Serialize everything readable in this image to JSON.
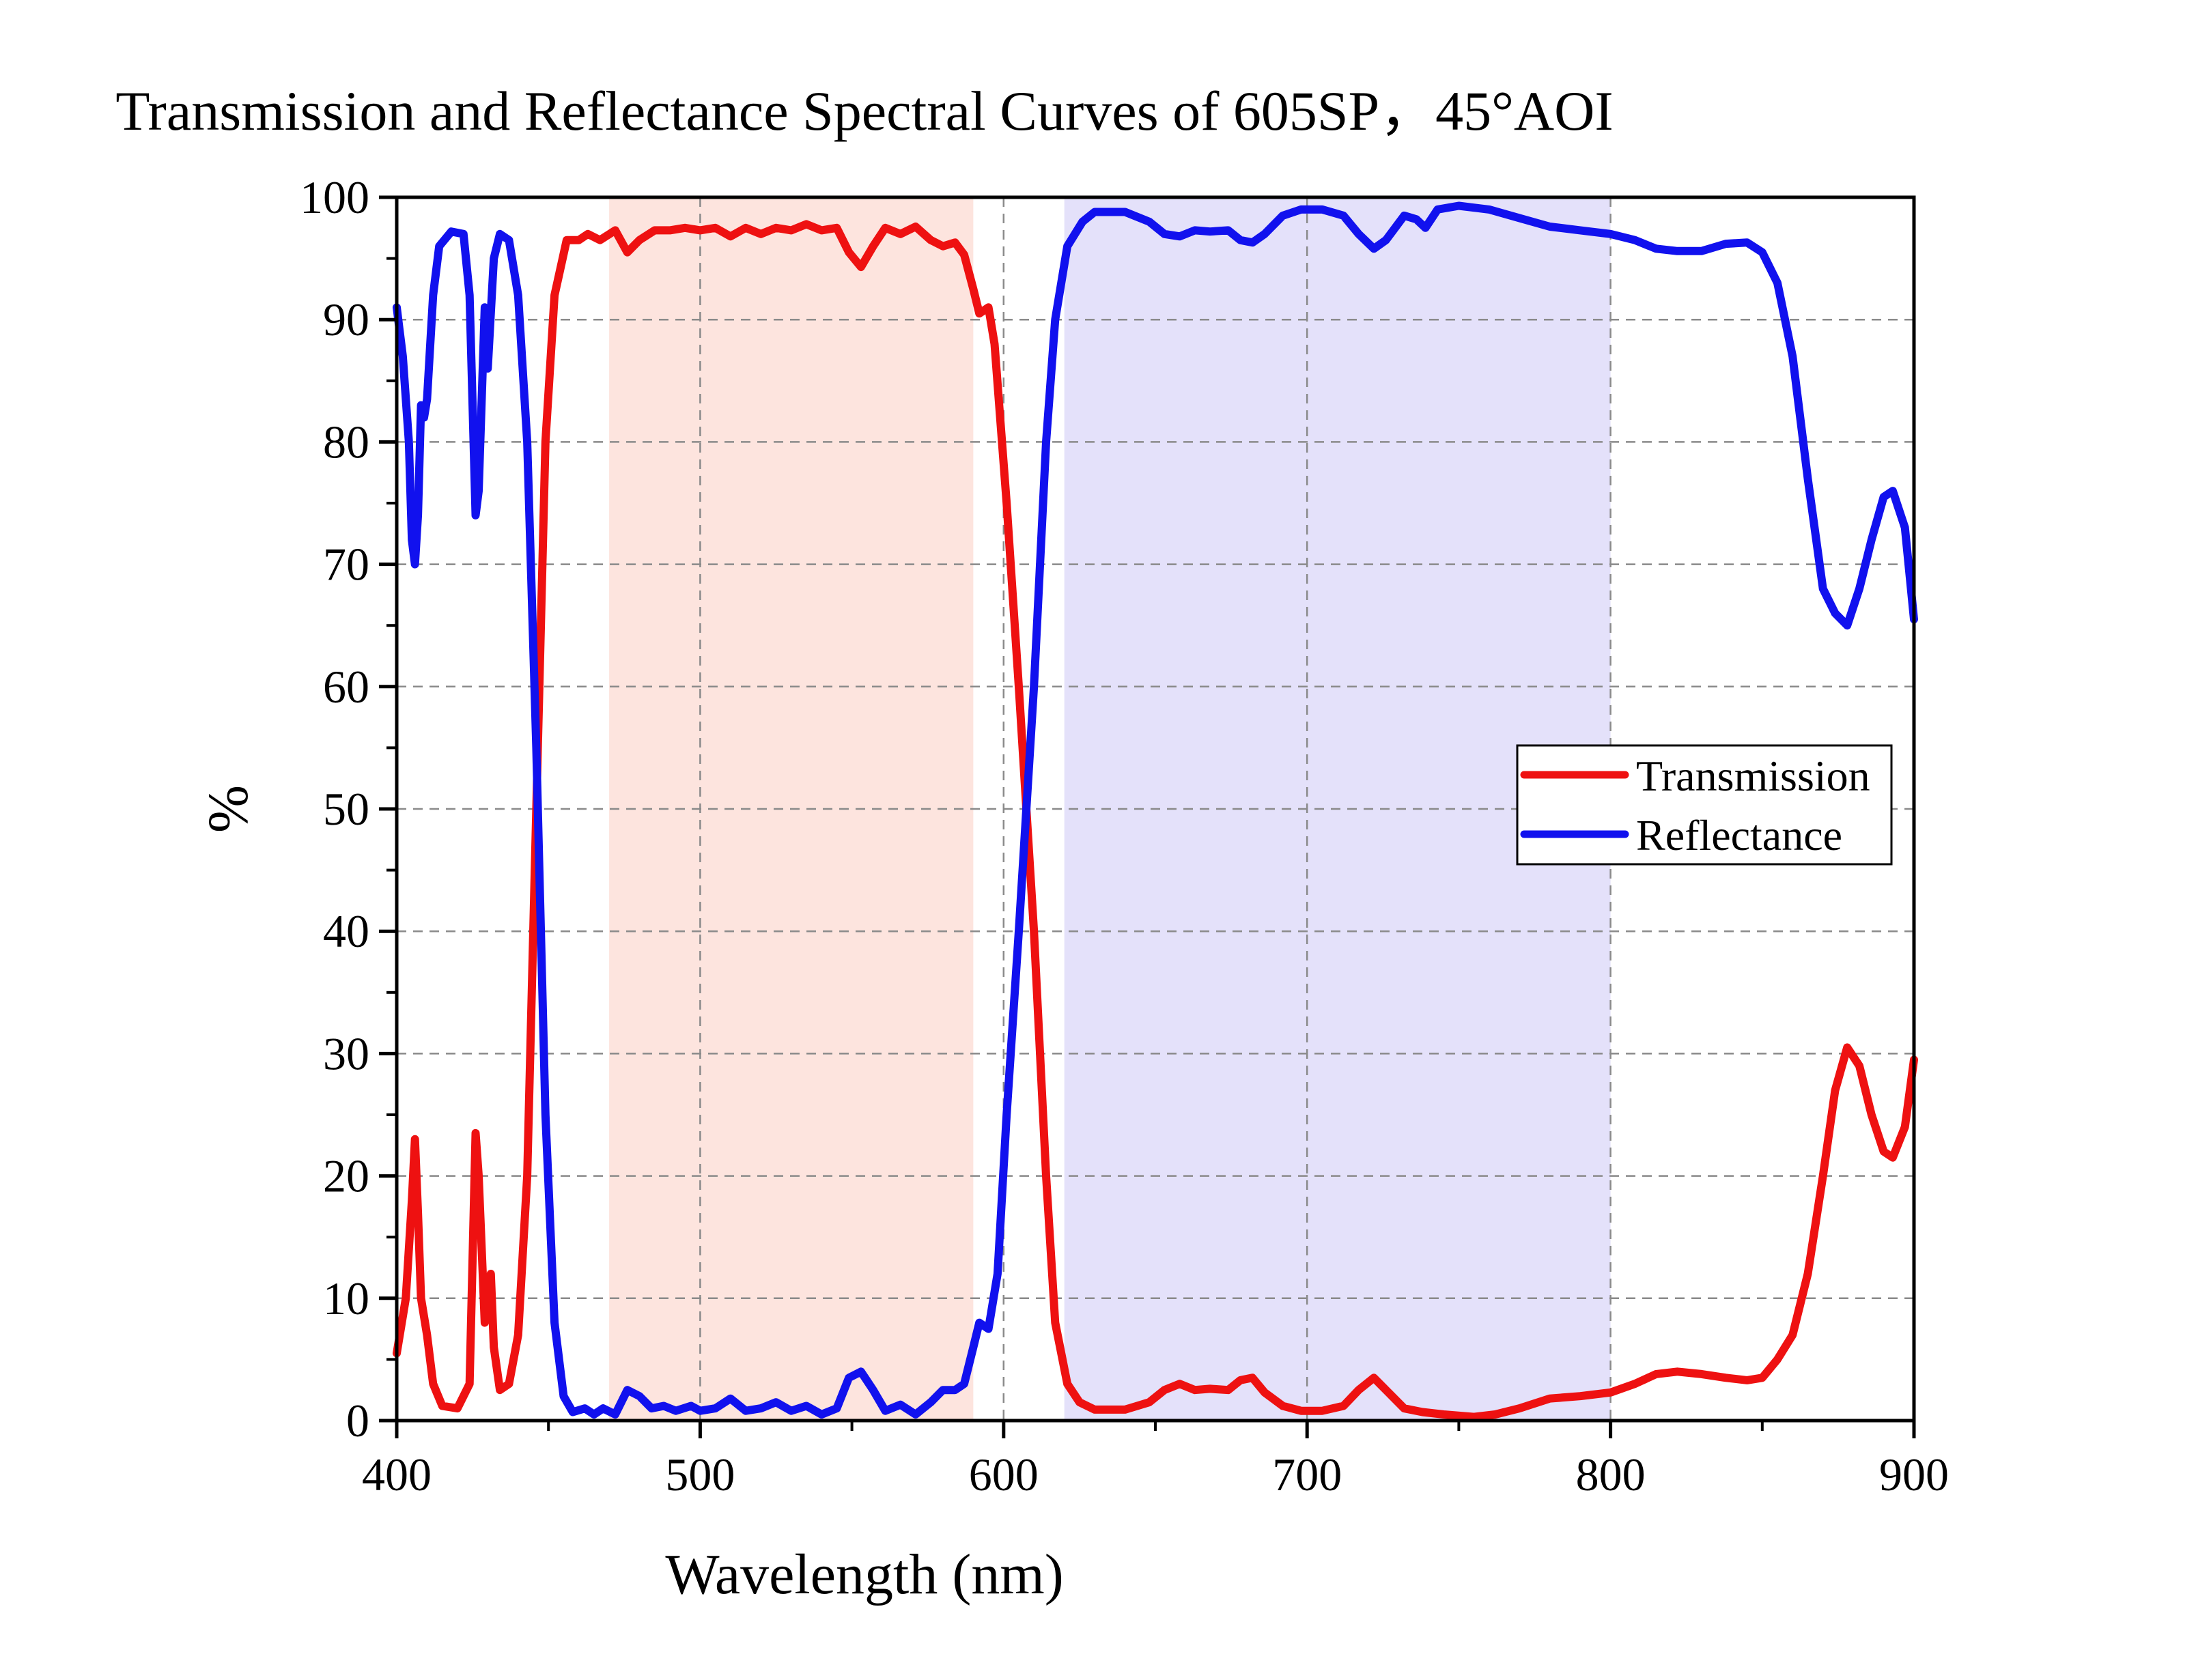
{
  "chart_data": {
    "type": "line",
    "title": "Transmission and Reflectance Spectral Curves of 605SP，45°AOI",
    "xlabel": "Wavelength (nm)",
    "ylabel": "%",
    "xlim": [
      400,
      900
    ],
    "ylim": [
      0,
      100
    ],
    "xticks": [
      400,
      500,
      600,
      700,
      800,
      900
    ],
    "yticks": [
      0,
      10,
      20,
      30,
      40,
      50,
      60,
      70,
      80,
      90,
      100
    ],
    "grid": true,
    "legend_position": "right-middle",
    "shaded_regions": [
      {
        "x": [
          470,
          590
        ],
        "color": "#fde4de"
      },
      {
        "x": [
          620,
          800
        ],
        "color": "#e4e1fa"
      }
    ],
    "series": [
      {
        "name": "Transmission",
        "color": "#ee1111",
        "points": [
          [
            400,
            5.5
          ],
          [
            403,
            10
          ],
          [
            405,
            18
          ],
          [
            406,
            23
          ],
          [
            407,
            17
          ],
          [
            408,
            10
          ],
          [
            410,
            7
          ],
          [
            412,
            3
          ],
          [
            415,
            1.2
          ],
          [
            420,
            1
          ],
          [
            424,
            3
          ],
          [
            426,
            23.5
          ],
          [
            427,
            20
          ],
          [
            429,
            8
          ],
          [
            431,
            12
          ],
          [
            432,
            6
          ],
          [
            434,
            2.5
          ],
          [
            437,
            3
          ],
          [
            440,
            7
          ],
          [
            443,
            20
          ],
          [
            446,
            50
          ],
          [
            449,
            80
          ],
          [
            452,
            92
          ],
          [
            456,
            96.5
          ],
          [
            460,
            96.5
          ],
          [
            463,
            97
          ],
          [
            467,
            96.5
          ],
          [
            472,
            97.3
          ],
          [
            476,
            95.5
          ],
          [
            480,
            96.5
          ],
          [
            485,
            97.3
          ],
          [
            490,
            97.3
          ],
          [
            495,
            97.5
          ],
          [
            500,
            97.3
          ],
          [
            505,
            97.5
          ],
          [
            510,
            96.8
          ],
          [
            515,
            97.5
          ],
          [
            520,
            97
          ],
          [
            525,
            97.5
          ],
          [
            530,
            97.3
          ],
          [
            535,
            97.8
          ],
          [
            540,
            97.3
          ],
          [
            545,
            97.5
          ],
          [
            549,
            95.5
          ],
          [
            553,
            94.3
          ],
          [
            557,
            96
          ],
          [
            561,
            97.5
          ],
          [
            566,
            97
          ],
          [
            571,
            97.6
          ],
          [
            576,
            96.5
          ],
          [
            580,
            96
          ],
          [
            584,
            96.3
          ],
          [
            587,
            95.3
          ],
          [
            590,
            92.5
          ],
          [
            592,
            90.5
          ],
          [
            595,
            91
          ],
          [
            597,
            88
          ],
          [
            601,
            75
          ],
          [
            605,
            60
          ],
          [
            610,
            40
          ],
          [
            614,
            20
          ],
          [
            617,
            8
          ],
          [
            621,
            3
          ],
          [
            625,
            1.5
          ],
          [
            630,
            0.9
          ],
          [
            640,
            0.9
          ],
          [
            648,
            1.5
          ],
          [
            653,
            2.5
          ],
          [
            658,
            3
          ],
          [
            663,
            2.5
          ],
          [
            668,
            2.6
          ],
          [
            674,
            2.5
          ],
          [
            678,
            3.3
          ],
          [
            682,
            3.5
          ],
          [
            686,
            2.3
          ],
          [
            692,
            1.2
          ],
          [
            698,
            0.8
          ],
          [
            705,
            0.8
          ],
          [
            712,
            1.2
          ],
          [
            717,
            2.5
          ],
          [
            722,
            3.5
          ],
          [
            726,
            2.5
          ],
          [
            732,
            1
          ],
          [
            738,
            0.7
          ],
          [
            745,
            0.5
          ],
          [
            755,
            0.3
          ],
          [
            762,
            0.5
          ],
          [
            770,
            1
          ],
          [
            780,
            1.8
          ],
          [
            790,
            2
          ],
          [
            800,
            2.3
          ],
          [
            808,
            3
          ],
          [
            815,
            3.8
          ],
          [
            822,
            4
          ],
          [
            830,
            3.8
          ],
          [
            838,
            3.5
          ],
          [
            845,
            3.3
          ],
          [
            850,
            3.5
          ],
          [
            855,
            5
          ],
          [
            860,
            7
          ],
          [
            865,
            12
          ],
          [
            870,
            20
          ],
          [
            874,
            27
          ],
          [
            878,
            30.5
          ],
          [
            882,
            29
          ],
          [
            886,
            25
          ],
          [
            890,
            22
          ],
          [
            893,
            21.5
          ],
          [
            897,
            24
          ],
          [
            900,
            29.5
          ]
        ]
      },
      {
        "name": "Reflectance",
        "color": "#1111ee",
        "points": [
          [
            400,
            91
          ],
          [
            402,
            87
          ],
          [
            404,
            80
          ],
          [
            405,
            72
          ],
          [
            406,
            70
          ],
          [
            407,
            74
          ],
          [
            408,
            83
          ],
          [
            409,
            82
          ],
          [
            410,
            83.5
          ],
          [
            412,
            92
          ],
          [
            414,
            96
          ],
          [
            418,
            97.2
          ],
          [
            422,
            97
          ],
          [
            424,
            92
          ],
          [
            426,
            74
          ],
          [
            427,
            76
          ],
          [
            429,
            91
          ],
          [
            430,
            86
          ],
          [
            432,
            95
          ],
          [
            434,
            97
          ],
          [
            437,
            96.5
          ],
          [
            440,
            92
          ],
          [
            443,
            80
          ],
          [
            446,
            55
          ],
          [
            449,
            25
          ],
          [
            452,
            8
          ],
          [
            455,
            2
          ],
          [
            458,
            0.7
          ],
          [
            462,
            1
          ],
          [
            465,
            0.5
          ],
          [
            468,
            1
          ],
          [
            472,
            0.5
          ],
          [
            476,
            2.5
          ],
          [
            480,
            2
          ],
          [
            484,
            1
          ],
          [
            488,
            1.2
          ],
          [
            492,
            0.8
          ],
          [
            497,
            1.2
          ],
          [
            500,
            0.8
          ],
          [
            505,
            1
          ],
          [
            510,
            1.8
          ],
          [
            515,
            0.8
          ],
          [
            520,
            1
          ],
          [
            525,
            1.5
          ],
          [
            530,
            0.8
          ],
          [
            535,
            1.2
          ],
          [
            540,
            0.5
          ],
          [
            545,
            1
          ],
          [
            549,
            3.5
          ],
          [
            553,
            4
          ],
          [
            557,
            2.5
          ],
          [
            561,
            0.8
          ],
          [
            566,
            1.3
          ],
          [
            571,
            0.5
          ],
          [
            576,
            1.5
          ],
          [
            580,
            2.5
          ],
          [
            584,
            2.5
          ],
          [
            587,
            3
          ],
          [
            590,
            6
          ],
          [
            592,
            8
          ],
          [
            595,
            7.5
          ],
          [
            598,
            12
          ],
          [
            601,
            25
          ],
          [
            605,
            40
          ],
          [
            610,
            60
          ],
          [
            614,
            80
          ],
          [
            617,
            90
          ],
          [
            621,
            96
          ],
          [
            626,
            98
          ],
          [
            630,
            98.8
          ],
          [
            640,
            98.8
          ],
          [
            648,
            98
          ],
          [
            653,
            97
          ],
          [
            658,
            96.8
          ],
          [
            663,
            97.3
          ],
          [
            668,
            97.2
          ],
          [
            674,
            97.3
          ],
          [
            678,
            96.5
          ],
          [
            682,
            96.3
          ],
          [
            686,
            97
          ],
          [
            692,
            98.5
          ],
          [
            698,
            99
          ],
          [
            705,
            99
          ],
          [
            712,
            98.5
          ],
          [
            717,
            97
          ],
          [
            722,
            95.8
          ],
          [
            726,
            96.5
          ],
          [
            732,
            98.5
          ],
          [
            736,
            98.2
          ],
          [
            739,
            97.5
          ],
          [
            743,
            99
          ],
          [
            750,
            99.3
          ],
          [
            760,
            99
          ],
          [
            770,
            98.3
          ],
          [
            780,
            97.6
          ],
          [
            790,
            97.3
          ],
          [
            800,
            97
          ],
          [
            808,
            96.5
          ],
          [
            815,
            95.8
          ],
          [
            822,
            95.6
          ],
          [
            830,
            95.6
          ],
          [
            838,
            96.2
          ],
          [
            845,
            96.3
          ],
          [
            850,
            95.5
          ],
          [
            855,
            93
          ],
          [
            860,
            87
          ],
          [
            865,
            77
          ],
          [
            870,
            68
          ],
          [
            874,
            66
          ],
          [
            878,
            65
          ],
          [
            882,
            68
          ],
          [
            886,
            72
          ],
          [
            890,
            75.5
          ],
          [
            893,
            76
          ],
          [
            897,
            73
          ],
          [
            900,
            65.5
          ]
        ]
      }
    ]
  }
}
